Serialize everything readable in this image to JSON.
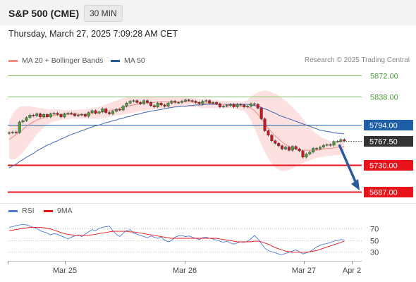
{
  "header": {
    "title": "S&P 500 (CME)",
    "timeframe": "30 MIN"
  },
  "datetime": "Thursday, March 27, 2025 7:09:28 AM CET",
  "legend": {
    "items": [
      {
        "label": "MA 20 + Bollinger Bands",
        "color": "#f28b82"
      },
      {
        "label": "MA 50",
        "color": "#2e5a99"
      }
    ],
    "credit": "Research © 2025 Trading Central"
  },
  "rsi_legend": {
    "items": [
      {
        "label": "RSI",
        "color": "#4d79d6"
      },
      {
        "label": "9MA",
        "color": "#e8141b"
      }
    ]
  },
  "levels": [
    {
      "value": 5872.0,
      "label": "5872.00",
      "kind": "resistance"
    },
    {
      "value": 5838.0,
      "label": "5838.00",
      "kind": "resistance"
    },
    {
      "value": 5794.0,
      "label": "5794.00",
      "kind": "pivot"
    },
    {
      "value": 5767.5,
      "label": "5767.50",
      "kind": "last"
    },
    {
      "value": 5730.0,
      "label": "5730.00",
      "kind": "support"
    },
    {
      "value": 5687.0,
      "label": "5687.00",
      "kind": "support"
    }
  ],
  "colors": {
    "resistance": "#7cc26b",
    "pivot": "#1f5fa8",
    "support": "#e8141b",
    "last": "#333333",
    "bull": "#4c9c3c",
    "bear": "#c8171e",
    "bollinger": "#f9c9c6",
    "ma20": "#f08a84",
    "ma50": "#3f66b3",
    "arrow": "#2a5a9c"
  },
  "chart_data": [
    {
      "type": "candlestick",
      "title": "S&P 500 (CME)",
      "x_ticks": [
        "Mar 25",
        "Mar 26",
        "Mar 27",
        "Apr 2"
      ],
      "ylim": [
        5687,
        5872
      ],
      "last_price": 5767.5,
      "projection": {
        "from": 5762,
        "to": 5687
      },
      "close": [
        5781,
        5782,
        5781,
        5798,
        5800,
        5805,
        5809,
        5808,
        5811,
        5806,
        5810,
        5806,
        5811,
        5812,
        5810,
        5806,
        5811,
        5812,
        5811,
        5808,
        5809,
        5810,
        5807,
        5813,
        5816,
        5812,
        5814,
        5819,
        5813,
        5811,
        5815,
        5818,
        5817,
        5823,
        5828,
        5831,
        5832,
        5829,
        5827,
        5832,
        5829,
        5824,
        5822,
        5828,
        5825,
        5823,
        5828,
        5831,
        5829,
        5829,
        5831,
        5833,
        5832,
        5831,
        5829,
        5827,
        5831,
        5832,
        5828,
        5829,
        5827,
        5822,
        5823,
        5824,
        5826,
        5822,
        5826,
        5825,
        5822,
        5823,
        5827,
        5826,
        5820,
        5803,
        5784,
        5777,
        5768,
        5764,
        5760,
        5755,
        5758,
        5753,
        5759,
        5755,
        5752,
        5742,
        5747,
        5750,
        5756,
        5755,
        5758,
        5761,
        5762,
        5761,
        5767,
        5767,
        5770,
        5768
      ],
      "ma20": [
        5770,
        5774,
        5778,
        5782,
        5786,
        5791,
        5795,
        5798,
        5801,
        5803,
        5805,
        5807,
        5808,
        5809,
        5809,
        5810,
        5810,
        5810,
        5810,
        5810,
        5810,
        5810,
        5810,
        5811,
        5811,
        5812,
        5813,
        5814,
        5815,
        5816,
        5817,
        5818,
        5820,
        5822,
        5823,
        5824,
        5825,
        5826,
        5827,
        5828,
        5828,
        5829,
        5829,
        5830,
        5830,
        5830,
        5830,
        5830,
        5830,
        5830,
        5830,
        5830,
        5830,
        5830,
        5829,
        5829,
        5828,
        5828,
        5828,
        5827,
        5827,
        5826,
        5826,
        5825,
        5825,
        5824,
        5824,
        5823,
        5823,
        5822,
        5820,
        5816,
        5810,
        5803,
        5795,
        5788,
        5782,
        5776,
        5771,
        5766,
        5762,
        5759,
        5757,
        5755,
        5754,
        5753,
        5753,
        5753,
        5753,
        5753,
        5754,
        5755,
        5756,
        5756,
        5757,
        5758,
        5758,
        5759
      ],
      "ma50": [
        5725,
        5728,
        5731,
        5735,
        5738,
        5742,
        5745,
        5748,
        5752,
        5755,
        5758,
        5761,
        5763,
        5766,
        5768,
        5771,
        5773,
        5776,
        5778,
        5780,
        5782,
        5784,
        5786,
        5788,
        5790,
        5792,
        5793,
        5795,
        5797,
        5798,
        5800,
        5801,
        5803,
        5804,
        5806,
        5807,
        5809,
        5810,
        5811,
        5813,
        5814,
        5815,
        5816,
        5817,
        5818,
        5819,
        5820,
        5821,
        5822,
        5822,
        5823,
        5823,
        5824,
        5824,
        5825,
        5825,
        5825,
        5826,
        5826,
        5826,
        5826,
        5826,
        5826,
        5826,
        5826,
        5826,
        5826,
        5826,
        5826,
        5826,
        5825,
        5824,
        5823,
        5821,
        5819,
        5817,
        5814,
        5812,
        5809,
        5807,
        5805,
        5803,
        5801,
        5799,
        5797,
        5795,
        5793,
        5791,
        5789,
        5787,
        5785,
        5784,
        5783,
        5782,
        5781,
        5780,
        5780,
        5779
      ],
      "bollinger_upper": [
        5800,
        5810,
        5818,
        5822,
        5823,
        5823,
        5823,
        5822,
        5821,
        5820,
        5819,
        5818,
        5818,
        5818,
        5818,
        5818,
        5817,
        5817,
        5817,
        5817,
        5818,
        5818,
        5818,
        5819,
        5820,
        5821,
        5822,
        5824,
        5826,
        5828,
        5830,
        5832,
        5834,
        5836,
        5837,
        5838,
        5838,
        5838,
        5838,
        5838,
        5838,
        5838,
        5838,
        5837,
        5837,
        5837,
        5837,
        5837,
        5837,
        5837,
        5837,
        5837,
        5837,
        5836,
        5836,
        5835,
        5835,
        5834,
        5834,
        5833,
        5833,
        5832,
        5832,
        5832,
        5832,
        5831,
        5831,
        5831,
        5831,
        5833,
        5838,
        5842,
        5845,
        5847,
        5848,
        5847,
        5845,
        5843,
        5840,
        5836,
        5832,
        5827,
        5822,
        5816,
        5810,
        5803,
        5796,
        5790,
        5784,
        5779,
        5775,
        5772,
        5770,
        5768,
        5767,
        5767,
        5767,
        5767
      ],
      "bollinger_lower": [
        5740,
        5738,
        5740,
        5744,
        5750,
        5757,
        5764,
        5771,
        5778,
        5784,
        5789,
        5793,
        5797,
        5799,
        5800,
        5801,
        5802,
        5802,
        5803,
        5803,
        5803,
        5803,
        5803,
        5803,
        5803,
        5803,
        5803,
        5804,
        5805,
        5806,
        5807,
        5808,
        5809,
        5810,
        5811,
        5812,
        5813,
        5814,
        5815,
        5816,
        5817,
        5818,
        5818,
        5819,
        5819,
        5820,
        5820,
        5821,
        5821,
        5822,
        5822,
        5822,
        5822,
        5822,
        5821,
        5821,
        5820,
        5820,
        5820,
        5820,
        5820,
        5820,
        5820,
        5820,
        5820,
        5819,
        5818,
        5817,
        5815,
        5810,
        5800,
        5788,
        5775,
        5762,
        5750,
        5740,
        5732,
        5726,
        5722,
        5720,
        5720,
        5722,
        5724,
        5727,
        5730,
        5733,
        5735,
        5737,
        5739,
        5741,
        5742,
        5743,
        5744,
        5744,
        5745,
        5745,
        5746,
        5746
      ]
    },
    {
      "type": "line",
      "title": "RSI",
      "x_ticks": [
        "Mar 25",
        "Mar 26",
        "Mar 27",
        "Apr 2"
      ],
      "ylim": [
        20,
        80
      ],
      "y_ticks": [
        30,
        50,
        70
      ],
      "series": [
        {
          "name": "RSI",
          "values": [
            72,
            73,
            75,
            76,
            77,
            76,
            74,
            72,
            70,
            66,
            64,
            62,
            59,
            61,
            60,
            57,
            55,
            52,
            55,
            57,
            59,
            56,
            60,
            64,
            68,
            66,
            70,
            72,
            73,
            74,
            66,
            60,
            56,
            62,
            66,
            68,
            62,
            60,
            58,
            56,
            54,
            57,
            55,
            53,
            55,
            50,
            47,
            49,
            55,
            57,
            58,
            56,
            57,
            55,
            53,
            51,
            54,
            55,
            53,
            52,
            50,
            48,
            46,
            48,
            45,
            43,
            45,
            47,
            46,
            48,
            52,
            58,
            52,
            44,
            36,
            32,
            30,
            28,
            26,
            25,
            27,
            29,
            31,
            33,
            30,
            26,
            28,
            30,
            34,
            38,
            41,
            43,
            44,
            46,
            48,
            49,
            51,
            50
          ]
        },
        {
          "name": "9MA",
          "values": [
            66,
            67,
            68,
            69,
            70,
            71,
            72,
            72,
            72,
            72,
            71,
            70,
            69,
            67,
            65,
            63,
            61,
            60,
            59,
            58,
            58,
            58,
            58,
            58,
            59,
            60,
            61,
            62,
            63,
            64,
            65,
            65,
            65,
            65,
            65,
            64,
            64,
            63,
            62,
            61,
            60,
            59,
            58,
            57,
            56,
            55,
            54,
            53,
            53,
            53,
            53,
            53,
            53,
            53,
            53,
            53,
            53,
            53,
            53,
            53,
            53,
            52,
            51,
            50,
            49,
            48,
            47,
            47,
            47,
            47,
            47,
            48,
            48,
            47,
            45,
            43,
            40,
            37,
            35,
            33,
            31,
            30,
            29,
            29,
            29,
            29,
            29,
            30,
            31,
            32,
            34,
            36,
            38,
            40,
            42,
            44,
            46,
            48
          ]
        }
      ]
    }
  ]
}
